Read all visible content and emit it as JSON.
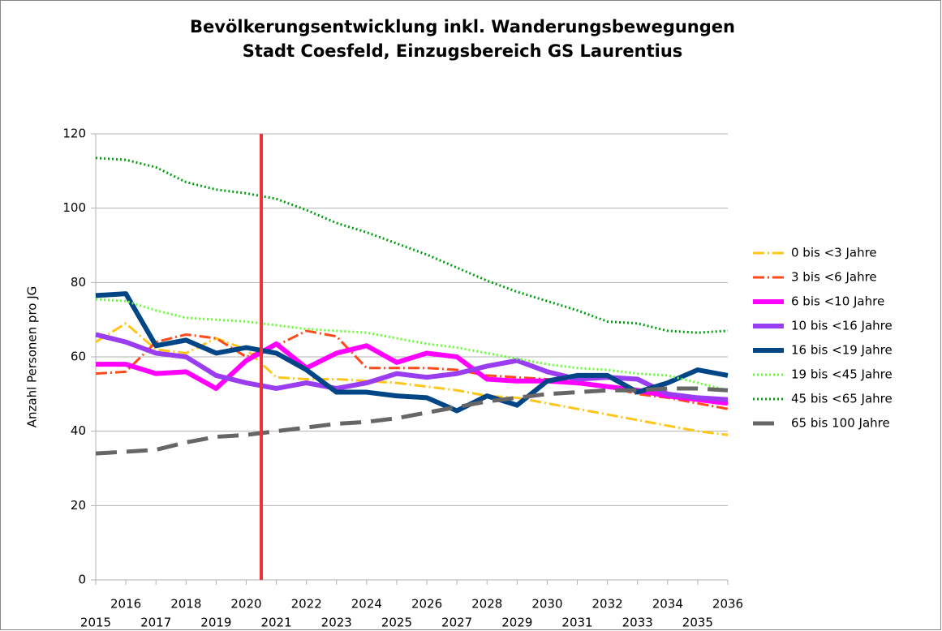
{
  "chart_data": {
    "type": "line",
    "title": "Bevölkerungsentwicklung inkl. Wanderungsbewegungen",
    "subtitle": "Stadt Coesfeld, Einzugsbereich GS Laurentius",
    "y_label": "Anzahl Personen pro JG",
    "x": [
      2015,
      2016,
      2017,
      2018,
      2019,
      2020,
      2021,
      2022,
      2023,
      2024,
      2025,
      2026,
      2027,
      2028,
      2029,
      2030,
      2031,
      2032,
      2033,
      2034,
      2035,
      2036
    ],
    "xlim": [
      2015,
      2036
    ],
    "xticks": [
      2015,
      2016,
      2017,
      2018,
      2019,
      2020,
      2021,
      2022,
      2023,
      2024,
      2025,
      2026,
      2027,
      2028,
      2029,
      2030,
      2031,
      2032,
      2033,
      2034,
      2035,
      2036
    ],
    "ylim": [
      0,
      120
    ],
    "yticks": [
      0,
      20,
      40,
      60,
      80,
      100,
      120
    ],
    "grid": true,
    "legend": "right",
    "vertical_line": {
      "x": 2020.5,
      "color": "#ee3333"
    },
    "series": [
      {
        "name": "0 bis <3 Jahre",
        "color": "#ffc61a",
        "style": "dashdot",
        "width": 3,
        "values": [
          64,
          69,
          62,
          61,
          65,
          62,
          54.5,
          54,
          54,
          53.5,
          53,
          52,
          51,
          49.5,
          49,
          47.5,
          46,
          44.5,
          43,
          41.5,
          40,
          39
        ]
      },
      {
        "name": "3 bis <6 Jahre",
        "color": "#ff4a1c",
        "style": "dashdot",
        "width": 3,
        "values": [
          55.5,
          56,
          64,
          66,
          65,
          60,
          63,
          67,
          65.5,
          57,
          57,
          57,
          56.5,
          55,
          54.5,
          54,
          53,
          52,
          50,
          49,
          47.5,
          46
        ]
      },
      {
        "name": "6 bis <10 Jahre",
        "color": "#ff00ff",
        "style": "solid",
        "width": 6,
        "values": [
          58,
          58,
          55.5,
          56,
          51.5,
          59,
          63.5,
          57,
          61,
          63,
          58.5,
          61,
          60,
          54,
          53.5,
          53.5,
          53,
          52,
          51,
          49.5,
          48.5,
          47.5
        ]
      },
      {
        "name": "10 bis <16 Jahre",
        "color": "#9a3cf0",
        "style": "solid",
        "width": 6,
        "values": [
          66,
          64,
          61,
          60,
          55,
          53,
          51.5,
          53,
          51.5,
          53,
          55.5,
          54.5,
          55.5,
          57.5,
          59,
          56,
          54,
          54.5,
          54,
          50,
          49,
          48.5
        ]
      },
      {
        "name": "16 bis <19 Jahre",
        "color": "#004586",
        "style": "solid",
        "width": 6,
        "values": [
          76.5,
          77,
          63,
          64.5,
          61,
          62.5,
          61,
          56.5,
          50.5,
          50.5,
          49.5,
          49,
          45.5,
          49.5,
          47,
          53.5,
          55,
          55,
          50.5,
          53,
          56.5,
          55
        ]
      },
      {
        "name": "19 bis <45 Jahre",
        "color": "#66ff33",
        "style": "dotted",
        "width": 3,
        "values": [
          75.5,
          75,
          72.5,
          70.5,
          70,
          69.5,
          68.5,
          67.5,
          67,
          66.5,
          65,
          63.5,
          62.5,
          61,
          59.5,
          58,
          57,
          56.5,
          55.5,
          55,
          53,
          51
        ]
      },
      {
        "name": "45 bis <65 Jahre",
        "color": "#009e0f",
        "style": "dotted",
        "width": 3,
        "values": [
          113.5,
          113,
          111,
          107,
          105,
          104,
          102.5,
          99.5,
          96,
          93.5,
          90.5,
          87.5,
          84,
          80.5,
          77.5,
          75,
          72.5,
          69.5,
          69,
          67,
          66.5,
          67
        ]
      },
      {
        "name": "65 bis 100 Jahre",
        "color": "#666666",
        "style": "dashed",
        "width": 5,
        "values": [
          34,
          34.5,
          35,
          37,
          38.5,
          39,
          40,
          41,
          42,
          42.5,
          43.5,
          45,
          46.5,
          48,
          49,
          50,
          50.5,
          51,
          51,
          51.5,
          51.5,
          51
        ]
      }
    ]
  }
}
